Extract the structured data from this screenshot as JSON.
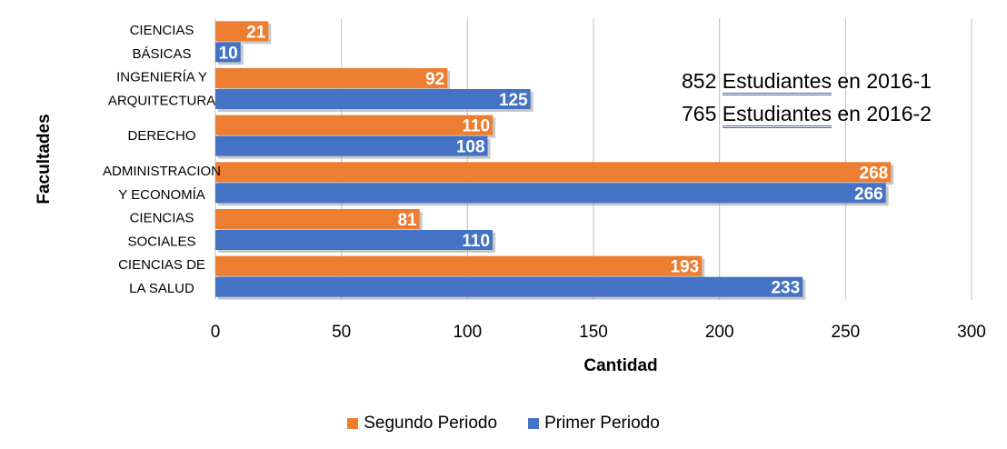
{
  "chart_data": {
    "type": "bar",
    "orientation": "horizontal",
    "categories": [
      [
        "CIENCIAS",
        "BÁSICAS"
      ],
      [
        "INGENIERÍA Y",
        "ARQUITECTURA"
      ],
      [
        "DERECHO"
      ],
      [
        "ADMINISTRACION",
        "Y ECONOMÍA"
      ],
      [
        "CIENCIAS",
        "SOCIALES"
      ],
      [
        "CIENCIAS DE",
        "LA SALUD"
      ]
    ],
    "series": [
      {
        "name": "Segundo Periodo",
        "color": "#ED7D31",
        "values": [
          21,
          92,
          110,
          268,
          81,
          193
        ]
      },
      {
        "name": "Primer Periodo",
        "color": "#4472C4",
        "values": [
          10,
          125,
          108,
          266,
          110,
          233
        ]
      }
    ],
    "xlabel": "Cantidad",
    "ylabel": "Facultades",
    "xlim": [
      0,
      300
    ],
    "xticks": [
      0,
      50,
      100,
      150,
      200,
      250,
      300
    ],
    "grid": true,
    "data_labels": true,
    "legend_position": "bottom",
    "annotations": [
      {
        "number": "852",
        "word": "Estudiantes",
        "rest": "en 2016-1"
      },
      {
        "number": "765",
        "word": "Estudiantes",
        "rest": "en 2016-2"
      }
    ]
  }
}
